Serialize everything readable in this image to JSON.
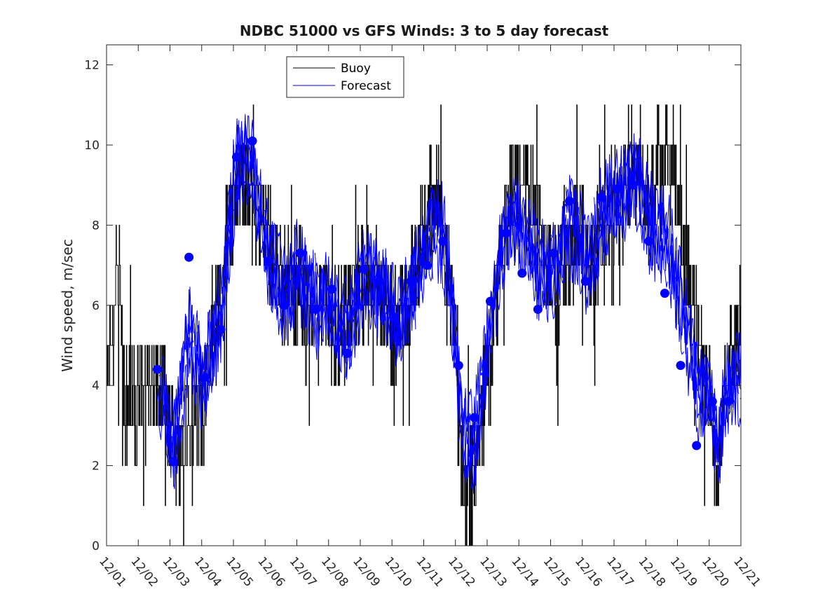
{
  "chart_data": {
    "type": "line",
    "title": "NDBC 51000 vs GFS Winds: 3 to 5 day forecast",
    "xlabel": "",
    "ylabel": "Wind speed, m/sec",
    "ylim": [
      0,
      12.5
    ],
    "xlim": [
      0,
      20
    ],
    "yticks": [
      "0",
      "2",
      "4",
      "6",
      "8",
      "10",
      "12"
    ],
    "xticks": [
      "12/01",
      "12/02",
      "12/03",
      "12/04",
      "12/05",
      "12/06",
      "12/07",
      "12/08",
      "12/09",
      "12/10",
      "12/11",
      "12/12",
      "12/13",
      "12/14",
      "12/15",
      "12/16",
      "12/17",
      "12/18",
      "12/19",
      "12/20",
      "12/21"
    ],
    "legend": {
      "placement": "top-center",
      "entries": [
        "Buoy",
        "Forecast"
      ]
    },
    "colors": {
      "buoy": "#000000",
      "forecast": "#0000ff",
      "axis": "#262626"
    },
    "buoy_anchors": {
      "x": [
        0,
        0.2,
        0.3,
        0.45,
        0.5,
        0.55,
        0.6,
        0.75,
        0.9,
        1.0,
        1.2,
        1.5,
        1.8,
        2.0,
        2.15,
        2.3,
        2.5,
        2.75,
        2.9,
        3.0,
        3.2,
        3.35,
        3.5,
        3.65,
        3.8,
        3.95,
        4.1,
        4.3,
        4.5,
        4.6,
        4.75,
        4.9,
        5.1,
        5.3,
        5.5,
        5.7,
        6.0,
        6.2,
        6.5,
        6.8,
        7.0,
        7.3,
        7.6,
        8.0,
        8.2,
        8.5,
        8.8,
        9.0,
        9.2,
        9.5,
        9.8,
        10.0,
        10.2,
        10.4,
        10.6,
        10.9,
        11.1,
        11.3,
        11.5,
        11.7,
        11.9,
        12.1,
        12.3,
        12.5,
        12.7,
        12.9,
        13.1,
        13.3,
        13.5,
        13.7,
        13.9,
        14.1,
        14.3,
        14.5,
        14.7,
        14.9,
        15.1,
        15.3,
        15.5,
        15.7,
        15.9,
        16.1,
        16.3,
        16.5,
        16.7,
        16.9,
        17.1,
        17.3,
        17.5,
        17.7,
        17.9,
        18.1,
        18.3,
        18.5,
        18.7,
        18.9,
        19.1,
        19.3,
        19.5,
        19.7,
        19.9,
        20.0
      ],
      "y": [
        4.5,
        5.5,
        6.5,
        6.0,
        5.0,
        3.5,
        3.5,
        4.0,
        3.5,
        4.0,
        4.0,
        4.0,
        4.0,
        3.0,
        2.5,
        2.0,
        3.0,
        3.0,
        3.5,
        3.0,
        5.0,
        5.5,
        6.0,
        6.5,
        7.5,
        8.5,
        9.0,
        9.0,
        9.0,
        8.5,
        8.0,
        8.0,
        7.5,
        7.0,
        6.5,
        6.5,
        6.5,
        6.0,
        6.0,
        6.0,
        5.5,
        5.5,
        6.0,
        6.5,
        6.5,
        6.5,
        6.0,
        5.5,
        5.5,
        6.0,
        7.0,
        8.0,
        8.5,
        8.5,
        8.0,
        6.0,
        3.0,
        1.5,
        1.5,
        2.5,
        3.5,
        4.5,
        6.0,
        7.5,
        8.5,
        9.0,
        9.0,
        9.0,
        8.5,
        8.0,
        7.0,
        6.5,
        6.5,
        7.0,
        7.5,
        8.0,
        7.5,
        7.0,
        7.5,
        8.0,
        8.5,
        8.5,
        8.5,
        9.0,
        9.5,
        9.0,
        8.5,
        9.0,
        9.5,
        9.5,
        9.0,
        8.0,
        7.0,
        6.0,
        5.0,
        4.0,
        3.0,
        1.5,
        4.0,
        5.0,
        5.0,
        5.0
      ]
    },
    "forecast_dots": {
      "x": [
        1.6,
        2.1,
        2.6,
        3.1,
        3.6,
        4.1,
        4.6,
        5.1,
        5.6,
        6.1,
        6.6,
        7.1,
        7.6,
        8.1,
        8.6,
        9.1,
        9.6,
        10.1,
        10.6,
        11.1,
        11.6,
        12.1,
        12.6,
        13.1,
        13.6,
        14.1,
        14.6,
        15.1,
        15.6,
        16.1,
        16.6,
        17.1,
        17.6,
        18.1,
        18.6,
        19.1,
        19.6
      ],
      "y": [
        4.4,
        2.1,
        7.2,
        4.2,
        5.4,
        9.7,
        10.1,
        7.1,
        6.0,
        7.3,
        5.9,
        6.4,
        4.8,
        6.9,
        6.6,
        5.7,
        6.6,
        7.0,
        7.6,
        4.5,
        3.2,
        6.1,
        7.8,
        6.8,
        5.9,
        7.3,
        8.6,
        6.6,
        8.7,
        8.9,
        9.0,
        7.6,
        6.3,
        4.5,
        2.5,
        3.6,
        3.6
      ]
    }
  }
}
